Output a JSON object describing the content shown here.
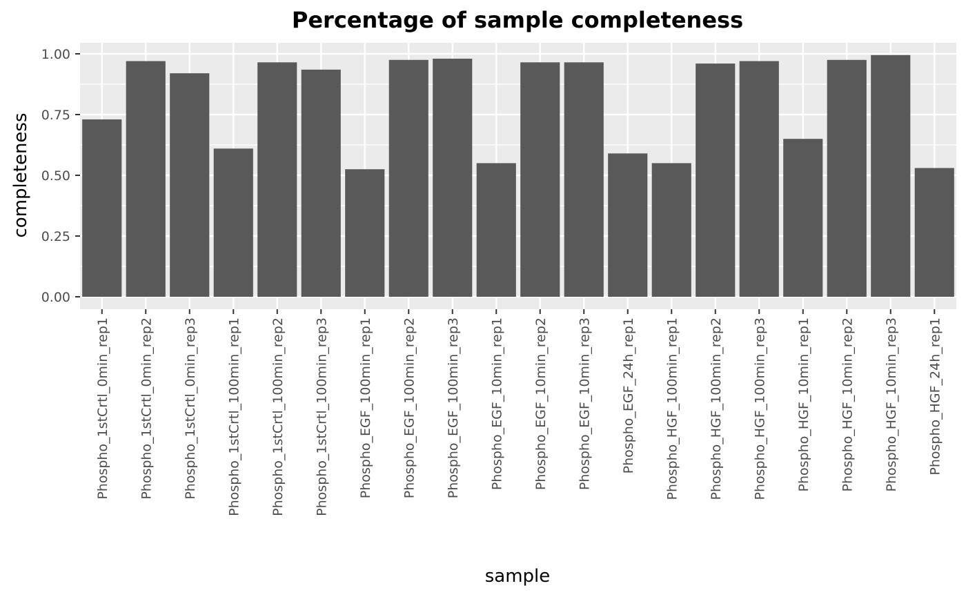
{
  "chart_data": {
    "type": "bar",
    "title": "Percentage of sample completeness",
    "xlabel": "sample",
    "ylabel": "completeness",
    "ylim": [
      0,
      1.0
    ],
    "yticks": [
      "0.00",
      "0.25",
      "0.50",
      "0.75",
      "1.00"
    ],
    "ytick_values": [
      0,
      0.25,
      0.5,
      0.75,
      1.0
    ],
    "grid": true,
    "categories": [
      "Phospho_1stCrtl_0min_rep1",
      "Phospho_1stCrtl_0min_rep2",
      "Phospho_1stCrtl_0min_rep3",
      "Phospho_1stCrtl_100min_rep1",
      "Phospho_1stCrtl_100min_rep2",
      "Phospho_1stCrtl_100min_rep3",
      "Phospho_EGF_100min_rep1",
      "Phospho_EGF_100min_rep2",
      "Phospho_EGF_100min_rep3",
      "Phospho_EGF_10min_rep1",
      "Phospho_EGF_10min_rep2",
      "Phospho_EGF_10min_rep3",
      "Phospho_EGF_24h_rep1",
      "Phospho_HGF_100min_rep1",
      "Phospho_HGF_100min_rep2",
      "Phospho_HGF_100min_rep3",
      "Phospho_HGF_10min_rep1",
      "Phospho_HGF_10min_rep2",
      "Phospho_HGF_10min_rep3",
      "Phospho_HGF_24h_rep1"
    ],
    "values": [
      0.73,
      0.97,
      0.92,
      0.61,
      0.965,
      0.935,
      0.525,
      0.975,
      0.98,
      0.55,
      0.965,
      0.965,
      0.59,
      0.55,
      0.96,
      0.97,
      0.65,
      0.975,
      0.995,
      0.53
    ],
    "bar_color": "#595959",
    "panel_color": "#ebebeb",
    "grid_color": "#ffffff"
  }
}
